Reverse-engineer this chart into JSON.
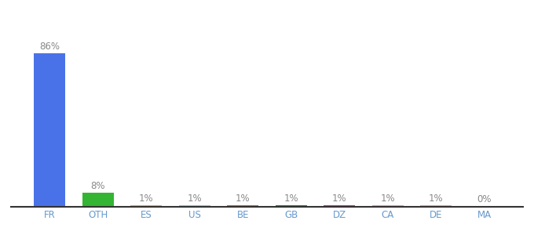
{
  "categories": [
    "FR",
    "OTH",
    "ES",
    "US",
    "BE",
    "GB",
    "DZ",
    "CA",
    "DE",
    "MA"
  ],
  "values": [
    86,
    8,
    1,
    1,
    1,
    1,
    1,
    1,
    1,
    0.3
  ],
  "labels": [
    "86%",
    "8%",
    "1%",
    "1%",
    "1%",
    "1%",
    "1%",
    "1%",
    "1%",
    "0%"
  ],
  "bar_colors": [
    "#4A72E8",
    "#33B533",
    "#F5A623",
    "#7EC8E3",
    "#C0622F",
    "#2D7A35",
    "#E91E8C",
    "#F48FB1",
    "#E8A090",
    "#CCCCCC"
  ],
  "background_color": "#ffffff",
  "ylim": [
    0,
    100
  ],
  "label_fontsize": 8.5,
  "tick_fontsize": 8.5,
  "label_color": "#888888",
  "tick_color": "#6699CC"
}
